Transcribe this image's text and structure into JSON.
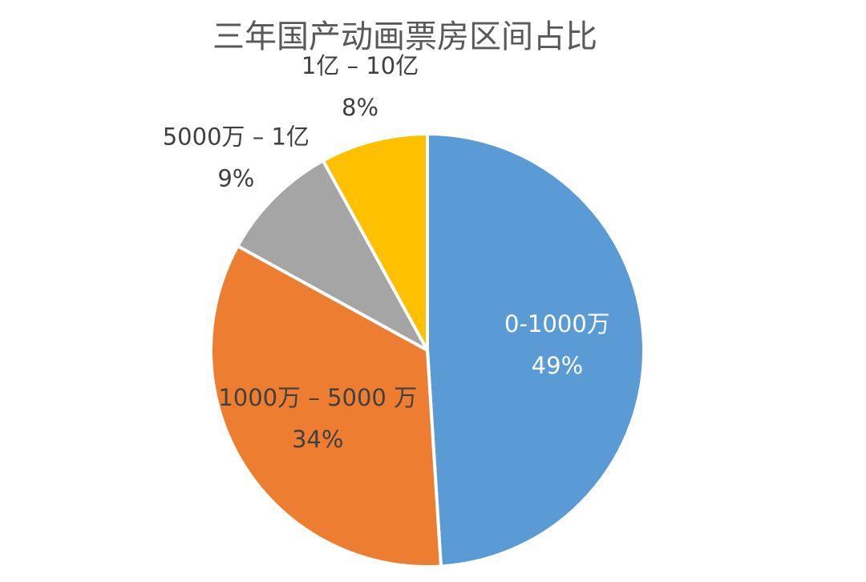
{
  "chart_data": {
    "type": "pie",
    "title": "三年国产动画票房区间占比",
    "categories": [
      "0-1000万",
      "1000万 – 5000 万",
      "5000万 – 1亿",
      "1亿 – 10亿"
    ],
    "values": [
      49,
      34,
      9,
      8
    ],
    "value_labels": [
      "49%",
      "34%",
      "9%",
      "8%"
    ],
    "colors": [
      "#5b9bd5",
      "#ed7d31",
      "#a5a5a5",
      "#ffc000"
    ],
    "label_colors": [
      "#ffffff",
      "#404040",
      "#404040",
      "#404040"
    ]
  }
}
